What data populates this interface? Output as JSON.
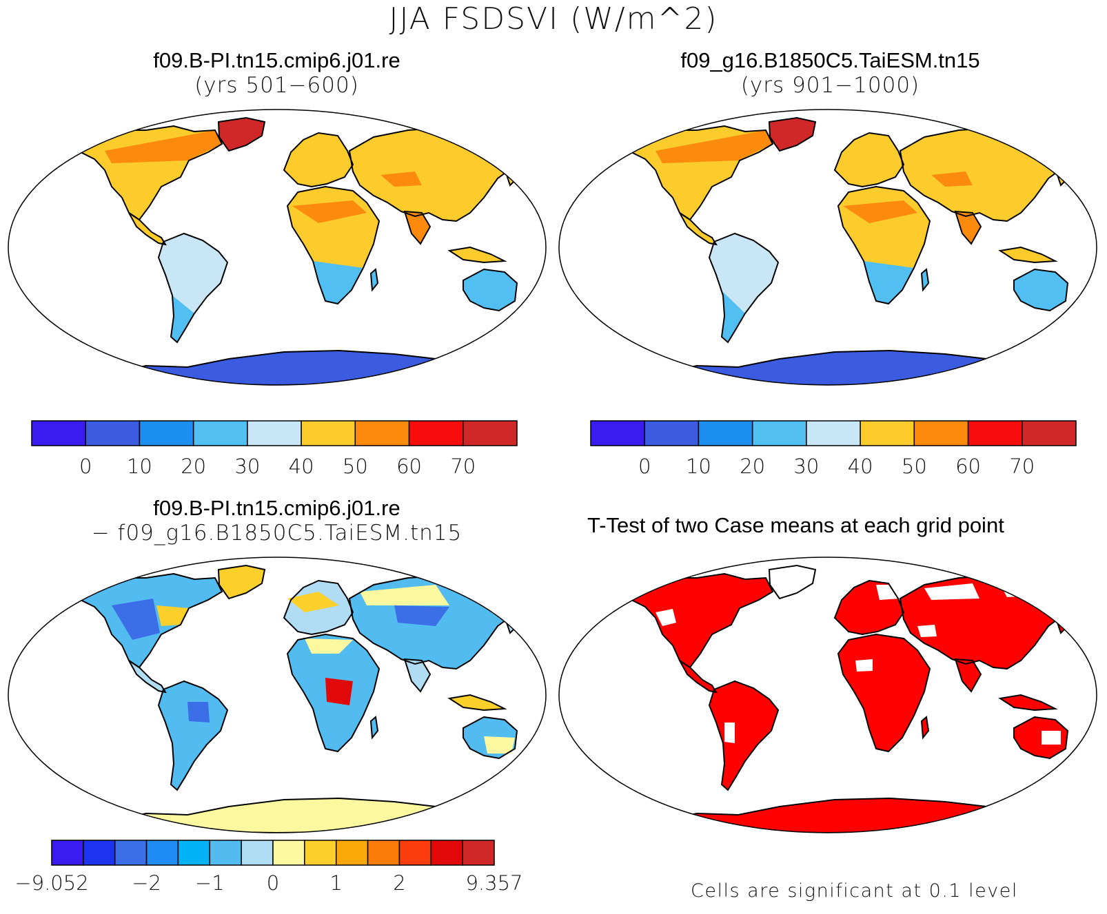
{
  "figure": {
    "title": "JJA FSDSVI (W/m^2)"
  },
  "panels": {
    "case1": {
      "name": "f09.B-PI.tn15.cmip6.j01.re",
      "years": "(yrs 501−600)"
    },
    "case2": {
      "name": "f09_g16.B1850C5.TaiESM.tn15",
      "years": "(yrs 901−1000)"
    },
    "diff": {
      "name": "f09.B-PI.tn15.cmip6.j01.re",
      "minus": "− f09_g16.B1850C5.TaiESM.tn15"
    },
    "ttest": {
      "title": "T-Test of two Case means at each grid point",
      "note": "Cells are significant at 0.1 level",
      "significant_color": "#ff0000"
    }
  },
  "colorbars": {
    "absolute": {
      "colors": [
        "#3a1cf0",
        "#3b5be0",
        "#1c8ff0",
        "#52bff2",
        "#c8e6f6",
        "#fccc2c",
        "#fc8a0c",
        "#f80c0c",
        "#d02828"
      ],
      "labels": [
        "0",
        "10",
        "20",
        "30",
        "40",
        "50",
        "60",
        "70"
      ]
    },
    "difference": {
      "colors": [
        "#3a1cf0",
        "#1c34f0",
        "#3c6ee8",
        "#1e8cf4",
        "#04b2f8",
        "#52bcf0",
        "#b0dcf4",
        "#fcf8a0",
        "#fcd02a",
        "#fca80a",
        "#fc7c0a",
        "#fc3c0c",
        "#e00808",
        "#d02828"
      ],
      "labels": [
        "−9.052",
        "−2",
        "−1",
        "0",
        "1",
        "2",
        "9.357"
      ]
    }
  },
  "colors": {
    "ocean": "#ffffff",
    "coast": "#000000"
  }
}
